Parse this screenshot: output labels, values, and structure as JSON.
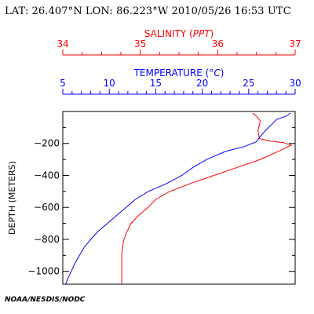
{
  "header": {
    "text": "LAT: 26.407°N LON: 86.223°W 2010/05/26 16:53 UTC"
  },
  "footer": {
    "text": "NOAA/NESDIS/NODC"
  },
  "colors": {
    "salinity": "#ff0000",
    "temperature": "#0000ff",
    "axes": "#000000"
  },
  "chart_data": {
    "type": "line",
    "grid": false,
    "ylabel": "DEPTH (METERS)",
    "ylim": [
      0,
      -1080
    ],
    "yticks": [
      -200,
      -400,
      -600,
      -800,
      -1000
    ],
    "salinity_axis": {
      "label": "SALINITY",
      "unit": "PPT",
      "range": [
        34,
        37
      ],
      "ticks": [
        34,
        35,
        36,
        37
      ]
    },
    "temperature_axis": {
      "label": "TEMPERATURE",
      "unit": "°C",
      "range": [
        5,
        30
      ],
      "ticks": [
        5,
        10,
        15,
        20,
        25,
        30
      ]
    },
    "series": [
      {
        "key": "salinity",
        "depth": [
          -10,
          -30,
          -60,
          -120,
          -170,
          -185,
          -195,
          -210,
          -250,
          -300,
          -350,
          -400,
          -450,
          -500,
          -550,
          -600,
          -650,
          -700,
          -730,
          -760,
          -800,
          -850,
          -900,
          -950,
          -1000,
          -1050,
          -1080
        ],
        "values": [
          36.45,
          36.5,
          36.55,
          36.52,
          36.54,
          36.68,
          36.85,
          36.95,
          36.78,
          36.55,
          36.25,
          35.95,
          35.65,
          35.38,
          35.2,
          35.1,
          34.98,
          34.88,
          34.85,
          34.82,
          34.79,
          34.77,
          34.76,
          34.76,
          34.76,
          34.76,
          34.76
        ]
      },
      {
        "key": "temperature",
        "depth": [
          -10,
          -30,
          -50,
          -80,
          -120,
          -160,
          -190,
          -220,
          -250,
          -300,
          -350,
          -400,
          -450,
          -500,
          -550,
          -600,
          -650,
          -700,
          -750,
          -800,
          -850,
          -900,
          -950,
          -1000,
          -1050,
          -1080
        ],
        "values": [
          29.5,
          29.0,
          28.0,
          27.5,
          26.8,
          26.2,
          25.8,
          24.5,
          22.5,
          20.5,
          19.0,
          17.8,
          16.2,
          14.2,
          12.8,
          11.8,
          10.8,
          9.8,
          8.8,
          8.0,
          7.3,
          6.8,
          6.3,
          5.9,
          5.5,
          5.3
        ]
      }
    ]
  }
}
